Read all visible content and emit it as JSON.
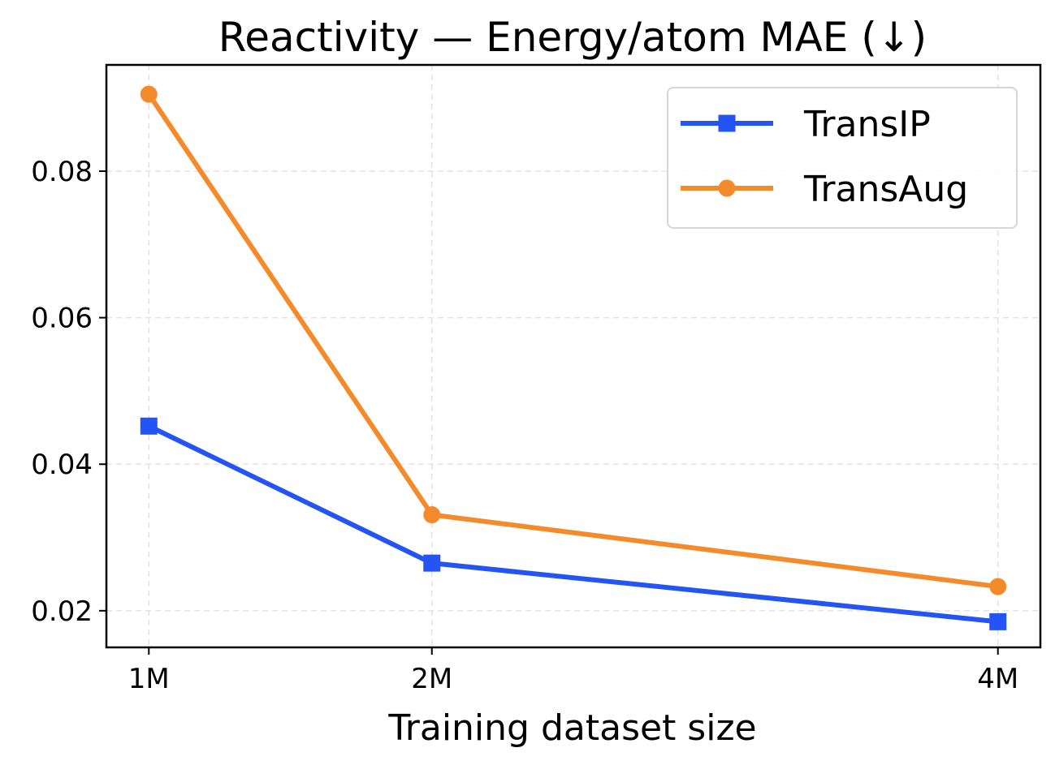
{
  "chart_data": {
    "type": "line",
    "title": "Reactivity — Energy/atom MAE (↓)",
    "xlabel": "Training dataset size",
    "ylabel": "",
    "x": [
      1,
      2,
      4
    ],
    "x_tick_labels": [
      "1M",
      "2M",
      "4M"
    ],
    "xlim": [
      0.85,
      4.15
    ],
    "ylim": [
      0.015,
      0.0945
    ],
    "y_ticks": [
      0.02,
      0.04,
      0.06,
      0.08
    ],
    "y_tick_labels": [
      "0.02",
      "0.04",
      "0.06",
      "0.08"
    ],
    "grid": true,
    "legend_position": "top-right",
    "series": [
      {
        "name": "TransIP",
        "values": [
          0.0452,
          0.0265,
          0.0185
        ],
        "color": "#2554f5",
        "marker": "square"
      },
      {
        "name": "TransAug",
        "values": [
          0.0905,
          0.0331,
          0.0233
        ],
        "color": "#f58a2a",
        "marker": "circle"
      }
    ]
  }
}
